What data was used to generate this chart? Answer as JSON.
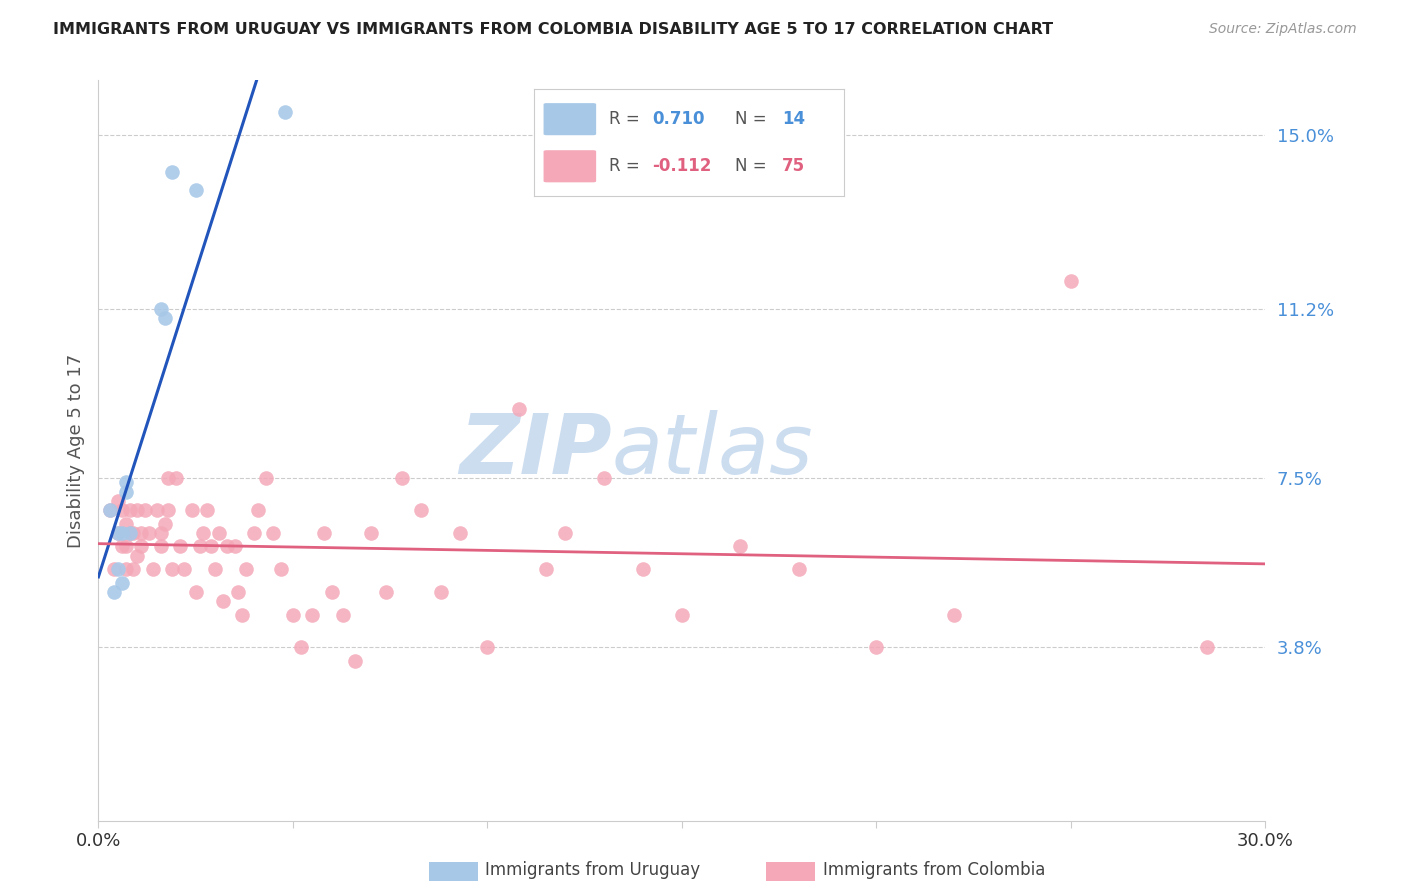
{
  "title": "IMMIGRANTS FROM URUGUAY VS IMMIGRANTS FROM COLOMBIA DISABILITY AGE 5 TO 17 CORRELATION CHART",
  "source": "Source: ZipAtlas.com",
  "ylabel": "Disability Age 5 to 17",
  "yticks": [
    0.0,
    0.038,
    0.075,
    0.112,
    0.15
  ],
  "ytick_labels": [
    "",
    "3.8%",
    "7.5%",
    "11.2%",
    "15.0%"
  ],
  "xlim": [
    0.0,
    0.3
  ],
  "ylim": [
    0.0,
    0.162
  ],
  "r_uruguay": 0.71,
  "n_uruguay": 14,
  "r_colombia": -0.112,
  "n_colombia": 75,
  "color_uruguay": "#a8c8e8",
  "color_colombia": "#f4a8b8",
  "line_color_uruguay": "#2255bb",
  "line_color_colombia": "#e06080",
  "watermark_zip": "ZIP",
  "watermark_atlas": "atlas",
  "watermark_color": "#ccddf0",
  "legend_r_color_uruguay": "#4a90d9",
  "legend_n_color_uruguay": "#4a90d9",
  "legend_r_color_colombia": "#e06080",
  "legend_n_color_colombia": "#e06080",
  "uruguay_x": [
    0.003,
    0.004,
    0.005,
    0.005,
    0.006,
    0.006,
    0.007,
    0.007,
    0.008,
    0.016,
    0.017,
    0.019,
    0.025,
    0.048
  ],
  "uruguay_y": [
    0.068,
    0.05,
    0.055,
    0.063,
    0.052,
    0.063,
    0.072,
    0.074,
    0.063,
    0.112,
    0.11,
    0.142,
    0.138,
    0.155
  ],
  "colombia_x": [
    0.003,
    0.004,
    0.005,
    0.005,
    0.006,
    0.006,
    0.007,
    0.007,
    0.007,
    0.008,
    0.008,
    0.009,
    0.009,
    0.01,
    0.01,
    0.011,
    0.011,
    0.012,
    0.013,
    0.014,
    0.015,
    0.016,
    0.016,
    0.017,
    0.018,
    0.018,
    0.019,
    0.02,
    0.021,
    0.022,
    0.024,
    0.025,
    0.026,
    0.027,
    0.028,
    0.029,
    0.03,
    0.031,
    0.032,
    0.033,
    0.035,
    0.036,
    0.037,
    0.038,
    0.04,
    0.041,
    0.043,
    0.045,
    0.047,
    0.05,
    0.052,
    0.055,
    0.058,
    0.06,
    0.063,
    0.066,
    0.07,
    0.074,
    0.078,
    0.083,
    0.088,
    0.093,
    0.1,
    0.108,
    0.115,
    0.12,
    0.13,
    0.14,
    0.15,
    0.165,
    0.18,
    0.2,
    0.22,
    0.25,
    0.285
  ],
  "colombia_y": [
    0.068,
    0.055,
    0.063,
    0.07,
    0.06,
    0.068,
    0.055,
    0.06,
    0.065,
    0.063,
    0.068,
    0.055,
    0.063,
    0.058,
    0.068,
    0.06,
    0.063,
    0.068,
    0.063,
    0.055,
    0.068,
    0.06,
    0.063,
    0.065,
    0.068,
    0.075,
    0.055,
    0.075,
    0.06,
    0.055,
    0.068,
    0.05,
    0.06,
    0.063,
    0.068,
    0.06,
    0.055,
    0.063,
    0.048,
    0.06,
    0.06,
    0.05,
    0.045,
    0.055,
    0.063,
    0.068,
    0.075,
    0.063,
    0.055,
    0.045,
    0.038,
    0.045,
    0.063,
    0.05,
    0.045,
    0.035,
    0.063,
    0.05,
    0.075,
    0.068,
    0.05,
    0.063,
    0.038,
    0.09,
    0.055,
    0.063,
    0.075,
    0.055,
    0.045,
    0.06,
    0.055,
    0.038,
    0.045,
    0.118,
    0.038
  ]
}
